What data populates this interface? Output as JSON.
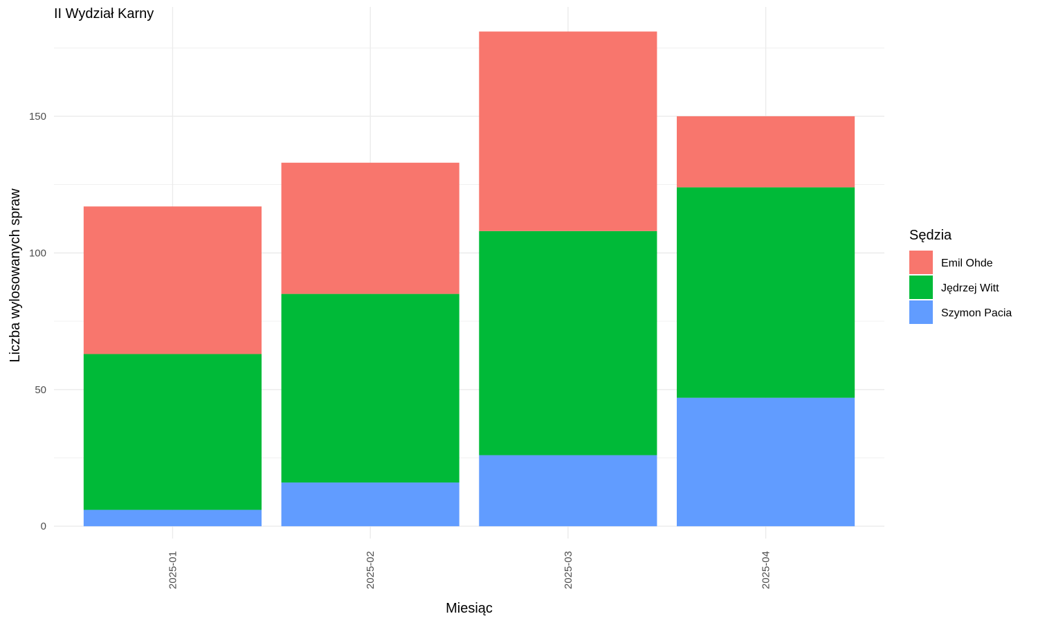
{
  "chart_data": {
    "type": "bar",
    "stacked": true,
    "title": "II Wydział Karny",
    "xlabel": "Miesiąc",
    "ylabel": "Liczba wylosowanych spraw",
    "categories": [
      "2025-01",
      "2025-02",
      "2025-03",
      "2025-04"
    ],
    "series": [
      {
        "name": "Szymon Pacia",
        "color": "#619CFF",
        "values": [
          6,
          16,
          26,
          47
        ]
      },
      {
        "name": "Jędrzej Witt",
        "color": "#00BA38",
        "values": [
          57,
          69,
          82,
          77
        ]
      },
      {
        "name": "Emil Ohde",
        "color": "#F8766D",
        "values": [
          54,
          48,
          73,
          26
        ]
      }
    ],
    "yticks": [
      0,
      50,
      100,
      150
    ],
    "ylim": [
      -4.5,
      190
    ],
    "grid": true,
    "legend": {
      "title": "Sędzia",
      "position": "right",
      "order": [
        "Emil Ohde",
        "Jędrzej Witt",
        "Szymon Pacia"
      ]
    }
  }
}
